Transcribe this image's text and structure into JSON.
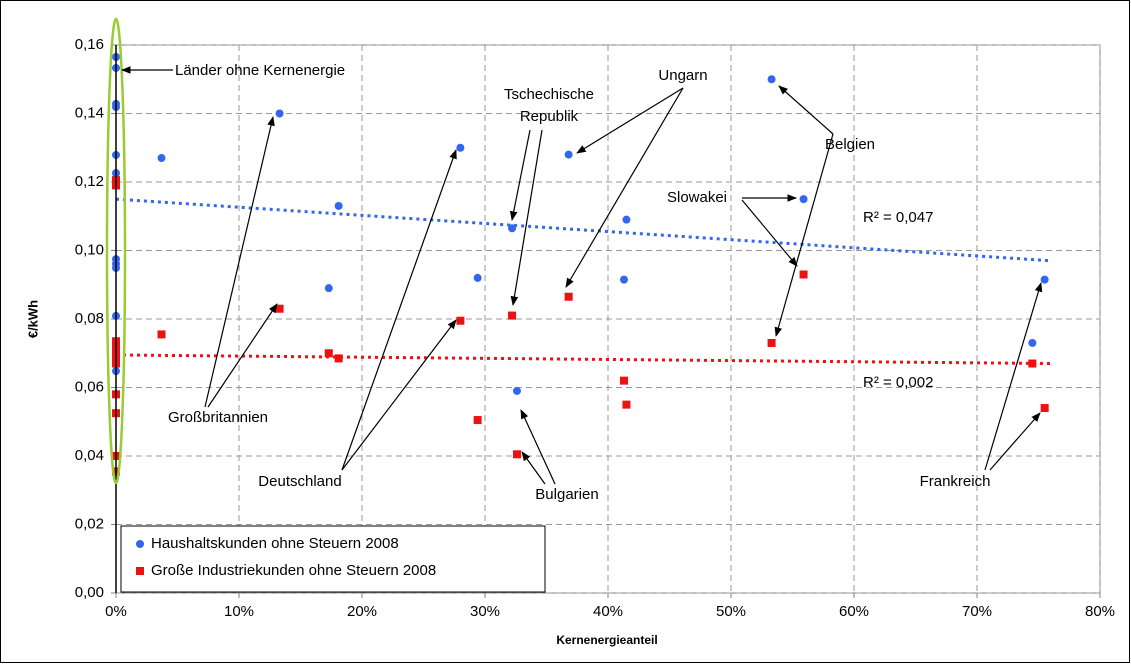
{
  "chart_data": {
    "type": "scatter",
    "x_label": "Kernenergieanteil",
    "y_label": "€/kWh",
    "xlim": [
      0,
      80
    ],
    "xticks": [
      {
        "value": 0,
        "label": "0%"
      },
      {
        "value": 10,
        "label": "10%"
      },
      {
        "value": 20,
        "label": "20%"
      },
      {
        "value": 30,
        "label": "30%"
      },
      {
        "value": 40,
        "label": "40%"
      },
      {
        "value": 50,
        "label": "50%"
      },
      {
        "value": 60,
        "label": "60%"
      },
      {
        "value": 70,
        "label": "70%"
      },
      {
        "value": 80,
        "label": "80%"
      }
    ],
    "ylim": [
      0,
      0.16
    ],
    "yticks": [
      {
        "value": 0,
        "label": "0,00"
      },
      {
        "value": 0.02,
        "label": "0,02"
      },
      {
        "value": 0.04,
        "label": "0,04"
      },
      {
        "value": 0.06,
        "label": "0,06"
      },
      {
        "value": 0.08,
        "label": "0,08"
      },
      {
        "value": 0.1,
        "label": "0,10"
      },
      {
        "value": 0.12,
        "label": "0,12"
      },
      {
        "value": 0.14,
        "label": "0,14"
      },
      {
        "value": 0.16,
        "label": "0,16"
      }
    ],
    "grid": true,
    "legend": "lower left",
    "series": [
      {
        "name": "Haushaltskunden ohne Steuern 2008",
        "color": "#3366ee",
        "marker": "circle",
        "x": [
          0,
          0,
          0,
          0,
          0,
          0,
          0,
          0,
          0,
          0,
          0,
          0,
          0,
          3.7,
          13.3,
          17.3,
          18.1,
          28.0,
          29.4,
          32.2,
          32.6,
          36.8,
          41.5,
          41.3,
          53.3,
          55.9,
          74.5,
          75.5
        ],
        "values": [
          0.1565,
          0.1533,
          0.1428,
          0.1419,
          0.1279,
          0.1226,
          0.1212,
          0.1197,
          0.0975,
          0.0961,
          0.0949,
          0.0809,
          0.0648,
          0.127,
          0.14,
          0.089,
          0.113,
          0.13,
          0.092,
          0.1065,
          0.059,
          0.128,
          0.109,
          0.0915,
          0.15,
          0.115,
          0.073,
          0.0915
        ]
      },
      {
        "name": "Große Industriekunden ohne Steuern 2008",
        "color": "#ee1111",
        "marker": "square",
        "x": [
          0,
          0,
          0,
          0,
          0,
          0,
          0,
          0,
          0,
          0,
          0,
          0,
          3.7,
          13.3,
          17.3,
          18.1,
          28.0,
          29.4,
          32.2,
          32.6,
          36.8,
          41.3,
          41.5,
          53.3,
          55.9,
          74.5,
          75.5
        ],
        "values": [
          0.1205,
          0.119,
          0.0735,
          0.072,
          0.071,
          0.0695,
          0.068,
          0.067,
          0.058,
          0.0525,
          0.04,
          0.0355,
          0.0755,
          0.083,
          0.07,
          0.0685,
          0.0795,
          0.0505,
          0.081,
          0.0405,
          0.0865,
          0.062,
          0.055,
          0.073,
          0.093,
          0.067,
          0.054
        ]
      }
    ],
    "trendlines": [
      {
        "color": "#3366ee",
        "x": [
          0,
          76
        ],
        "values": [
          0.115,
          0.097
        ],
        "label": "R² = 0,047"
      },
      {
        "color": "#ee1111",
        "x": [
          0,
          76
        ],
        "values": [
          0.0695,
          0.067
        ],
        "label": "R² = 0,002"
      }
    ],
    "annotations": [
      {
        "lines": [
          "Länder ohne Kernenergie"
        ]
      },
      {
        "lines": [
          "Tschechische",
          "Republik"
        ]
      },
      {
        "lines": [
          "Ungarn"
        ]
      },
      {
        "lines": [
          "Belgien"
        ]
      },
      {
        "lines": [
          "Slowakei"
        ]
      },
      {
        "lines": [
          "Großbritannien"
        ]
      },
      {
        "lines": [
          "Deutschland"
        ]
      },
      {
        "lines": [
          "Bulgarien"
        ]
      },
      {
        "lines": [
          "Frankreich"
        ]
      }
    ]
  }
}
